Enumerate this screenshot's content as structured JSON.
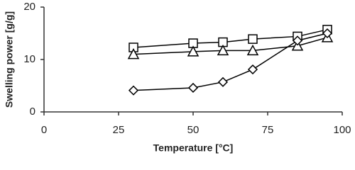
{
  "chart_data": {
    "type": "line",
    "x_label": "Temperature [°C]",
    "y_label": "Swelling power [g/g]",
    "x": [
      30,
      50,
      60,
      70,
      85,
      95
    ],
    "series": [
      {
        "color": "#000000",
        "marker": "square",
        "values": [
          12.3,
          13.1,
          13.3,
          13.9,
          14.4,
          15.7
        ]
      },
      {
        "color": "#000000",
        "marker": "triangle",
        "values": [
          11.0,
          11.5,
          11.7,
          11.7,
          12.6,
          14.2
        ]
      },
      {
        "color": "#000000",
        "marker": "diamond",
        "values": [
          4.1,
          4.6,
          5.7,
          8.1,
          13.6,
          15.0
        ]
      }
    ],
    "xlim": [
      0,
      100
    ],
    "xticks": [
      0,
      25,
      50,
      75,
      100
    ],
    "ylim": [
      0,
      20
    ],
    "yticks": [
      0,
      10,
      20
    ],
    "grid": false
  }
}
